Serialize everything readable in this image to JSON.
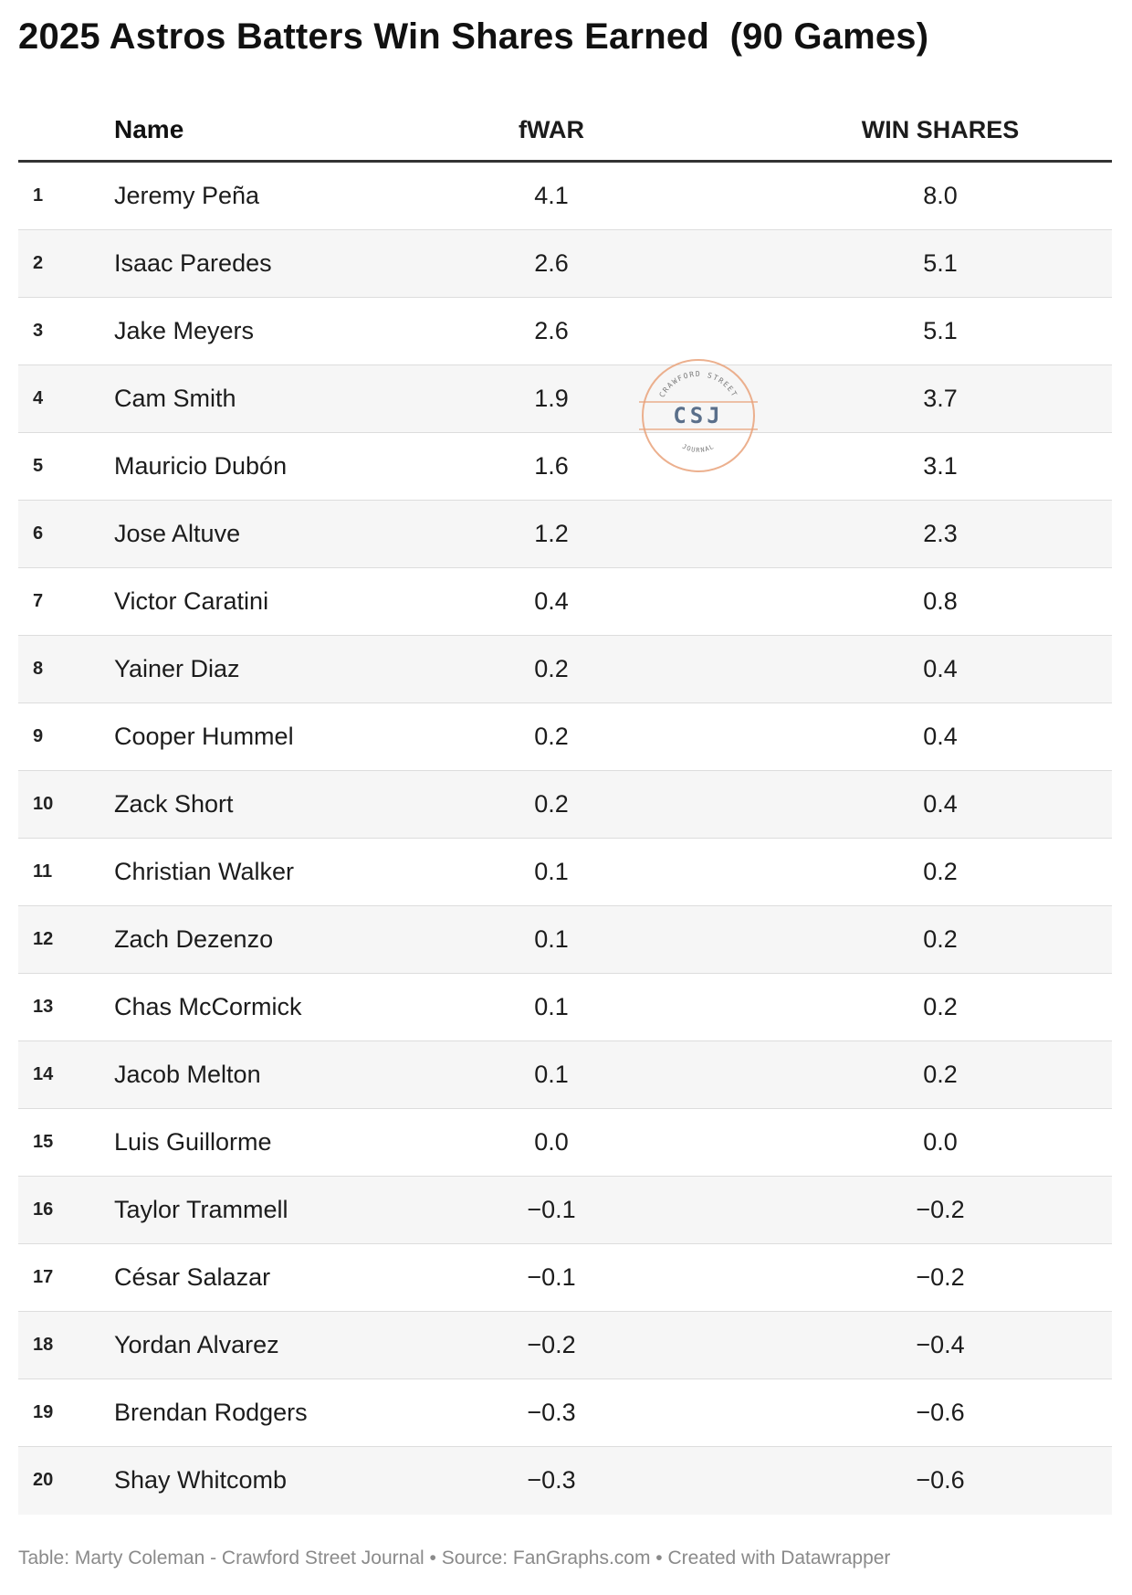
{
  "chart_data": {
    "type": "table",
    "title": "2025 Astros Batters Win Shares Earned  (90 Games)",
    "columns": [
      "",
      "Name",
      "fWAR",
      "WIN SHARES"
    ],
    "rows": [
      {
        "rank": "1",
        "name": "Jeremy Peña",
        "fwar": "4.1",
        "win_shares": "8.0"
      },
      {
        "rank": "2",
        "name": "Isaac Paredes",
        "fwar": "2.6",
        "win_shares": "5.1"
      },
      {
        "rank": "3",
        "name": "Jake Meyers",
        "fwar": "2.6",
        "win_shares": "5.1"
      },
      {
        "rank": "4",
        "name": "Cam Smith",
        "fwar": "1.9",
        "win_shares": "3.7"
      },
      {
        "rank": "5",
        "name": "Mauricio Dubón",
        "fwar": "1.6",
        "win_shares": "3.1"
      },
      {
        "rank": "6",
        "name": "Jose Altuve",
        "fwar": "1.2",
        "win_shares": "2.3"
      },
      {
        "rank": "7",
        "name": "Victor Caratini",
        "fwar": "0.4",
        "win_shares": "0.8"
      },
      {
        "rank": "8",
        "name": "Yainer Diaz",
        "fwar": "0.2",
        "win_shares": "0.4"
      },
      {
        "rank": "9",
        "name": "Cooper Hummel",
        "fwar": "0.2",
        "win_shares": "0.4"
      },
      {
        "rank": "10",
        "name": "Zack Short",
        "fwar": "0.2",
        "win_shares": "0.4"
      },
      {
        "rank": "11",
        "name": "Christian Walker",
        "fwar": "0.1",
        "win_shares": "0.2"
      },
      {
        "rank": "12",
        "name": "Zach Dezenzo",
        "fwar": "0.1",
        "win_shares": "0.2"
      },
      {
        "rank": "13",
        "name": "Chas McCormick",
        "fwar": "0.1",
        "win_shares": "0.2"
      },
      {
        "rank": "14",
        "name": "Jacob Melton",
        "fwar": "0.1",
        "win_shares": "0.2"
      },
      {
        "rank": "15",
        "name": "Luis Guillorme",
        "fwar": "0.0",
        "win_shares": "0.0"
      },
      {
        "rank": "16",
        "name": "Taylor Trammell",
        "fwar": "−0.1",
        "win_shares": "−0.2"
      },
      {
        "rank": "17",
        "name": "César Salazar",
        "fwar": "−0.1",
        "win_shares": "−0.2"
      },
      {
        "rank": "18",
        "name": "Yordan Alvarez",
        "fwar": "−0.2",
        "win_shares": "−0.4"
      },
      {
        "rank": "19",
        "name": "Brendan Rodgers",
        "fwar": "−0.3",
        "win_shares": "−0.6"
      },
      {
        "rank": "20",
        "name": "Shay Whitcomb",
        "fwar": "−0.3",
        "win_shares": "−0.6"
      }
    ]
  },
  "headers": {
    "rank": "",
    "name": "Name",
    "fwar": "fWAR",
    "win_shares": "WIN SHARES"
  },
  "logo": {
    "top_text": "CRAWFORD STREET",
    "initials": "CSJ",
    "bottom_text": "JOURNAL",
    "ring_color": "#e9a27a",
    "text_color": "#5a6f8a"
  },
  "colors": {
    "stripe": "#f6f6f6",
    "header_rule": "#333333",
    "footer_text": "#8a8a8a"
  },
  "footer": "Table: Marty Coleman - Crawford Street Journal • Source: FanGraphs.com • Created with Datawrapper"
}
